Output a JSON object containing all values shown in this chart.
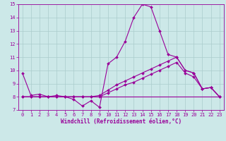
{
  "bg_color": "#cce8e8",
  "line_color": "#990099",
  "grid_color": "#aacccc",
  "xlabel": "Windchill (Refroidissement éolien,°C)",
  "xlabel_color": "#990099",
  "xlim": [
    -0.5,
    23.5
  ],
  "ylim": [
    7,
    15
  ],
  "yticks": [
    7,
    8,
    9,
    10,
    11,
    12,
    13,
    14,
    15
  ],
  "xticks": [
    0,
    1,
    2,
    3,
    4,
    5,
    6,
    7,
    8,
    9,
    10,
    11,
    12,
    13,
    14,
    15,
    16,
    17,
    18,
    19,
    20,
    21,
    22,
    23
  ],
  "series": [
    {
      "x": [
        0,
        1,
        2,
        3,
        4,
        5,
        6,
        7,
        8,
        9,
        10,
        11,
        12,
        13,
        14,
        15,
        16,
        17,
        18,
        19,
        20,
        21,
        22,
        23
      ],
      "y": [
        9.8,
        8.1,
        8.2,
        8.0,
        8.1,
        8.0,
        7.8,
        7.3,
        7.7,
        7.2,
        10.5,
        11.0,
        12.2,
        14.0,
        15.0,
        14.8,
        13.0,
        11.2,
        11.0,
        10.0,
        9.8,
        8.6,
        8.7,
        8.0
      ]
    },
    {
      "x": [
        0,
        23
      ],
      "y": [
        8.0,
        8.0
      ]
    },
    {
      "x": [
        0,
        1,
        2,
        3,
        4,
        5,
        6,
        7,
        8,
        9,
        10,
        11,
        12,
        13,
        14,
        15,
        16,
        17,
        18,
        19,
        20,
        21,
        22,
        23
      ],
      "y": [
        8.0,
        8.0,
        8.0,
        8.0,
        8.0,
        8.0,
        8.0,
        8.0,
        8.0,
        8.1,
        8.5,
        8.9,
        9.2,
        9.5,
        9.8,
        10.1,
        10.4,
        10.7,
        11.0,
        10.0,
        9.8,
        8.6,
        8.7,
        8.0
      ]
    },
    {
      "x": [
        0,
        1,
        2,
        3,
        4,
        5,
        6,
        7,
        8,
        9,
        10,
        11,
        12,
        13,
        14,
        15,
        16,
        17,
        18,
        19,
        20,
        21,
        22,
        23
      ],
      "y": [
        8.0,
        8.0,
        8.0,
        8.0,
        8.0,
        8.0,
        8.0,
        8.0,
        8.0,
        8.0,
        8.3,
        8.6,
        8.9,
        9.1,
        9.4,
        9.7,
        10.0,
        10.3,
        10.6,
        9.8,
        9.5,
        8.6,
        8.7,
        8.0
      ]
    }
  ],
  "marker": "D",
  "markersize": 2.0,
  "linewidth": 0.8,
  "tick_fontsize": 5.0,
  "xlabel_fontsize": 5.5,
  "tick_color": "#990099",
  "axis_color": "#990099"
}
